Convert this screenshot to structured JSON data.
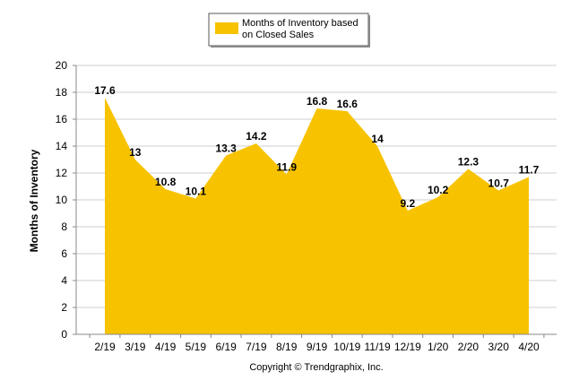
{
  "chart_data": {
    "type": "area",
    "categories": [
      "2/19",
      "3/19",
      "4/19",
      "5/19",
      "6/19",
      "7/19",
      "8/19",
      "9/19",
      "10/19",
      "11/19",
      "12/19",
      "1/20",
      "2/20",
      "3/20",
      "4/20"
    ],
    "series": [
      {
        "name": "Months of Inventory based on Closed Sales",
        "values": [
          17.6,
          13,
          10.8,
          10.1,
          13.3,
          14.2,
          11.9,
          16.8,
          16.6,
          14,
          9.2,
          10.2,
          12.3,
          10.7,
          11.7
        ],
        "labels": [
          "17.6",
          "13",
          "10.8",
          "10.1",
          "13.3",
          "14.2",
          "11.9",
          "16.8",
          "16.6",
          "14",
          "9.2",
          "10.2",
          "12.3",
          "10.7",
          "11.7"
        ],
        "color": "#f7c300"
      }
    ],
    "legend": {
      "line1": "Months of Inventory based",
      "line2": "on Closed Sales",
      "position": "top-center"
    },
    "ylabel": "Months of Inventory",
    "xlabel": "",
    "ylim": [
      0,
      20
    ],
    "yticks": [
      "0",
      "2",
      "4",
      "6",
      "8",
      "10",
      "12",
      "14",
      "16",
      "18",
      "20"
    ],
    "grid": true,
    "footer": "Copyright © Trendgraphix, Inc."
  }
}
